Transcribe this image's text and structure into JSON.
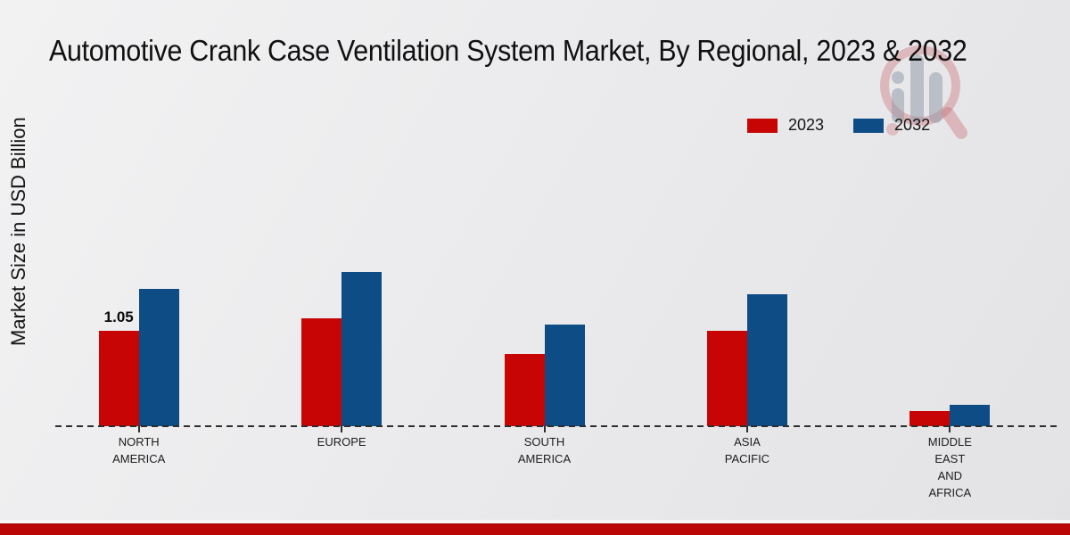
{
  "title": "Automotive Crank Case Ventilation System Market, By Regional, 2023 & 2032",
  "ylabel": "Market Size in USD Billion",
  "icons": {
    "watermark": "magnifier-bar-chart-logo"
  },
  "colors": {
    "series_2023": "#c70505",
    "series_2032": "#0e4c85",
    "footer_bar": "#ba0604",
    "baseline": "#2e2e2e"
  },
  "footer": {
    "bar_color": "#ba0604"
  },
  "chart_data": {
    "type": "bar",
    "title": "Automotive Crank Case Ventilation System Market, By Regional, 2023 & 2032",
    "xlabel": "",
    "ylabel": "Market Size in USD Billion",
    "categories": [
      "NORTH AMERICA",
      "EUROPE",
      "SOUTH AMERICA",
      "ASIA PACIFIC",
      "MIDDLE EAST AND AFRICA"
    ],
    "category_lines": [
      [
        "NORTH",
        "AMERICA"
      ],
      [
        "EUROPE"
      ],
      [
        "SOUTH",
        "AMERICA"
      ],
      [
        "ASIA",
        "PACIFIC"
      ],
      [
        "MIDDLE",
        "EAST",
        "AND",
        "AFRICA"
      ]
    ],
    "series": [
      {
        "name": "2023",
        "color": "#c70505",
        "values": [
          1.05,
          1.19,
          0.8,
          1.05,
          0.17
        ],
        "labels": [
          "1.05",
          "",
          "",
          "",
          ""
        ]
      },
      {
        "name": "2032",
        "color": "#0e4c85",
        "values": [
          1.51,
          1.7,
          1.12,
          1.46,
          0.24
        ],
        "labels": [
          "",
          "",
          "",
          "",
          ""
        ]
      }
    ],
    "ylim": [
      0,
      2.0
    ],
    "grid": false,
    "legend_position": "top-right",
    "baseline_style": "dashed",
    "annotations": [
      {
        "category": "NORTH AMERICA",
        "series": "2023",
        "text": "1.05"
      }
    ]
  }
}
